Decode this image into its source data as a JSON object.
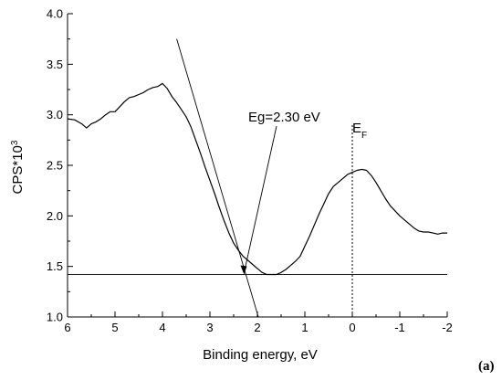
{
  "chart_data": {
    "type": "line",
    "title": "",
    "xlabel": "Binding energy, eV",
    "ylabel": "CPS*10",
    "ylabel_superscript": "3",
    "xlim": [
      6,
      -2
    ],
    "ylim": [
      1.0,
      4.0
    ],
    "x_reversed": true,
    "x_ticks": [
      6,
      5,
      4,
      3,
      2,
      1,
      0,
      -1,
      -2
    ],
    "x_tick_labels": [
      "6",
      "5",
      "4",
      "3",
      "2",
      "1",
      "0",
      "-1",
      "-2"
    ],
    "y_ticks": [
      1.0,
      1.5,
      2.0,
      2.5,
      3.0,
      3.5,
      4.0
    ],
    "y_tick_labels": [
      "1.0",
      "1.5",
      "2.0",
      "2.5",
      "3.0",
      "3.5",
      "4.0"
    ],
    "grid": false,
    "series": [
      {
        "x": [
          6.0,
          5.85,
          5.7,
          5.6,
          5.5,
          5.4,
          5.3,
          5.2,
          5.1,
          5.0,
          4.9,
          4.8,
          4.7,
          4.6,
          4.5,
          4.4,
          4.3,
          4.2,
          4.1,
          4.0,
          3.9,
          3.8,
          3.7,
          3.6,
          3.5,
          3.4,
          3.3,
          3.2,
          3.1,
          3.0,
          2.9,
          2.8,
          2.7,
          2.6,
          2.5,
          2.4,
          2.3,
          2.2,
          2.1,
          2.0,
          1.9,
          1.8,
          1.7,
          1.6,
          1.5,
          1.4,
          1.3,
          1.2,
          1.1,
          1.0,
          0.9,
          0.8,
          0.7,
          0.6,
          0.5,
          0.4,
          0.3,
          0.2,
          0.1,
          0.0,
          -0.1,
          -0.2,
          -0.3,
          -0.4,
          -0.5,
          -0.6,
          -0.7,
          -0.8,
          -0.9,
          -1.0,
          -1.1,
          -1.2,
          -1.3,
          -1.4,
          -1.5,
          -1.6,
          -1.7,
          -1.8,
          -1.9,
          -2.0
        ],
        "y": [
          2.96,
          2.95,
          2.91,
          2.87,
          2.91,
          2.93,
          2.96,
          3.0,
          3.03,
          3.03,
          3.08,
          3.13,
          3.17,
          3.18,
          3.2,
          3.22,
          3.25,
          3.27,
          3.28,
          3.31,
          3.26,
          3.18,
          3.12,
          3.05,
          2.98,
          2.88,
          2.75,
          2.62,
          2.48,
          2.35,
          2.22,
          2.08,
          1.95,
          1.83,
          1.73,
          1.66,
          1.6,
          1.56,
          1.52,
          1.48,
          1.44,
          1.42,
          1.42,
          1.42,
          1.44,
          1.47,
          1.51,
          1.55,
          1.6,
          1.7,
          1.8,
          1.91,
          2.02,
          2.12,
          2.22,
          2.29,
          2.33,
          2.37,
          2.41,
          2.43,
          2.45,
          2.46,
          2.45,
          2.4,
          2.33,
          2.25,
          2.17,
          2.1,
          2.05,
          2.0,
          1.96,
          1.92,
          1.88,
          1.85,
          1.84,
          1.84,
          1.83,
          1.82,
          1.83,
          1.83
        ]
      }
    ],
    "annotations": {
      "eg_label": "Eg=2.30 eV",
      "ef_label": "E",
      "ef_subscript": "F",
      "panel_label": "(a)",
      "tangent_line": {
        "x1": 3.7,
        "y1": 3.75,
        "x2": 1.98,
        "y2": 1.0
      },
      "baseline": {
        "y": 1.42,
        "x1": 6.0,
        "x2": -2.0
      },
      "fermi_line": {
        "x": 0.0,
        "y1": 1.0,
        "y2": 2.9
      },
      "arrow_tip": {
        "x": 2.28,
        "y": 1.42
      }
    }
  }
}
